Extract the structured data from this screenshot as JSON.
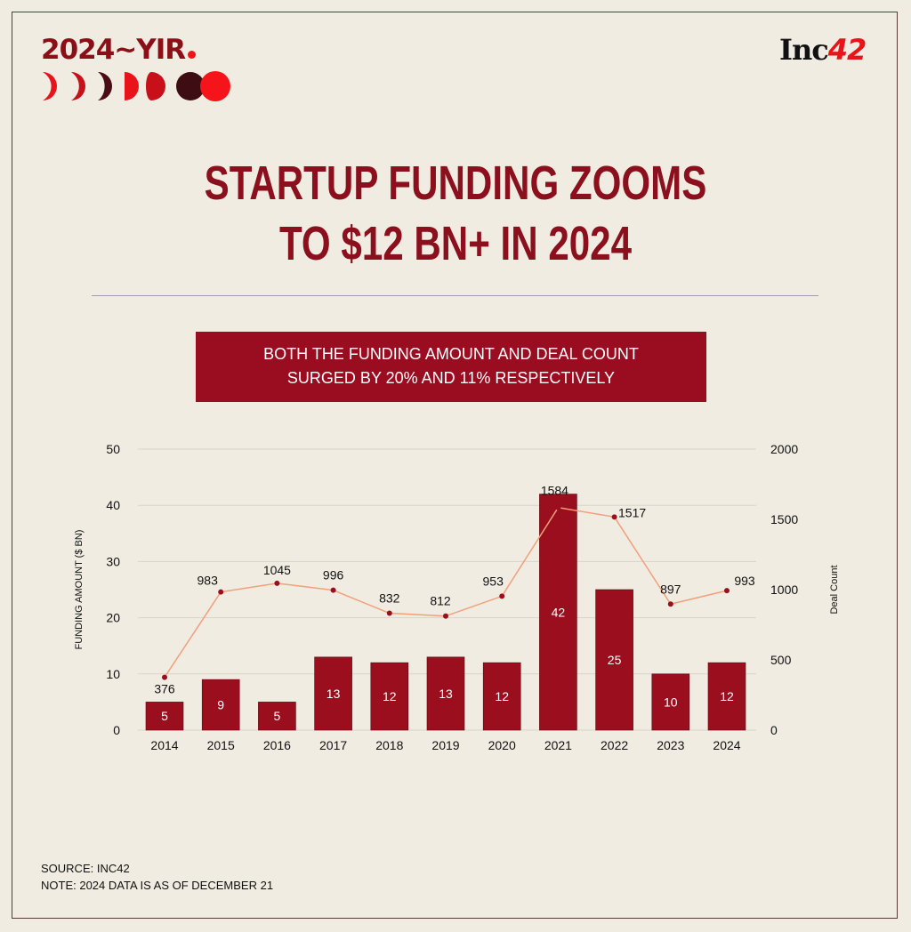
{
  "brand": {
    "yir_logo": "2024~YIR",
    "inc42_logo": {
      "part1": "Inc",
      "part2": "42"
    }
  },
  "title": {
    "line1": "STARTUP FUNDING ZOOMS",
    "line2": "TO $12 BN+ IN 2024"
  },
  "banner": {
    "line1": "BOTH THE FUNDING AMOUNT AND DEAL COUNT",
    "line2": "SURGED BY 20% AND 11% RESPECTIVELY"
  },
  "colors": {
    "bar": "#9b0e1e",
    "line": "#f0a07a",
    "marker": "#9b0e1e",
    "title": "#8b0f1d",
    "background": "#f0ece2"
  },
  "chart_data": {
    "type": "bar+line",
    "categories": [
      "2014",
      "2015",
      "2016",
      "2017",
      "2018",
      "2019",
      "2020",
      "2021",
      "2022",
      "2023",
      "2024"
    ],
    "series": [
      {
        "type": "bar",
        "axis": "left",
        "values": [
          5,
          9,
          5,
          13,
          12,
          13,
          12,
          42,
          25,
          10,
          12
        ]
      },
      {
        "type": "line",
        "axis": "right",
        "values": [
          376,
          983,
          1045,
          996,
          832,
          812,
          953,
          1584,
          1517,
          897,
          993
        ]
      }
    ],
    "ylabel": "FUNDING AMOUNT ($ BN)",
    "ylim": [
      0,
      50
    ],
    "yticks": [
      0,
      10,
      20,
      30,
      40,
      50
    ],
    "y2label": "Deal Count",
    "y2lim": [
      0,
      2000
    ],
    "y2ticks": [
      0,
      500,
      1000,
      1500,
      2000
    ],
    "grid": true
  },
  "footer": {
    "source": "SOURCE: INC42",
    "note": "NOTE: 2024 DATA IS AS OF DECEMBER 21"
  }
}
